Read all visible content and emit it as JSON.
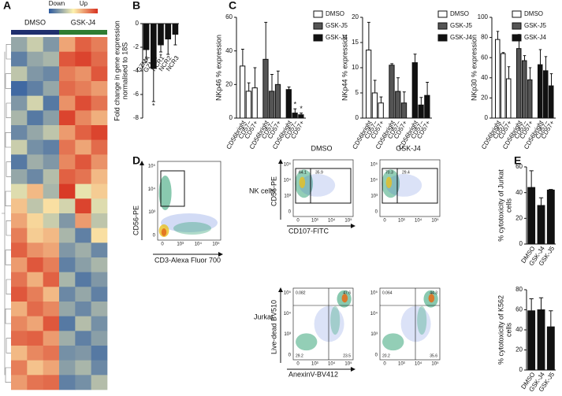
{
  "panel_labels": [
    "A",
    "B",
    "C",
    "D",
    "E"
  ],
  "chart_data": [
    {
      "type": "heatmap",
      "legend_labels": [
        "Down",
        "Up"
      ],
      "groups": [
        "DMSO",
        "GSK-J4"
      ],
      "group_colors": [
        "#1f2f6e",
        "#2e7d32"
      ],
      "zlim": [
        -2,
        2
      ],
      "values": [
        [
          -1,
          -0.5,
          -1.2,
          0.8,
          1.5,
          1.2
        ],
        [
          -1.5,
          -1,
          -0.8,
          1.6,
          1.8,
          1.4
        ],
        [
          -0.6,
          -1.2,
          -1.4,
          1.2,
          1,
          1.6
        ],
        [
          -1.8,
          -1.5,
          -1,
          1.4,
          1.2,
          0.9
        ],
        [
          -1.2,
          -0.4,
          -1.6,
          1,
          1.7,
          1.3
        ],
        [
          -0.8,
          -1.6,
          -1.1,
          1.8,
          1.1,
          0.7
        ],
        [
          -1.4,
          -1,
          -0.6,
          0.9,
          1.5,
          1.8
        ],
        [
          -0.5,
          -1.3,
          -1.5,
          1.3,
          0.8,
          1.4
        ],
        [
          -1.6,
          -0.9,
          -1.2,
          1.1,
          1.6,
          1
        ],
        [
          -1,
          -1.4,
          -0.7,
          1.5,
          1.3,
          0.6
        ],
        [
          -0.3,
          0.6,
          -0.8,
          1.9,
          -0.2,
          0.4
        ],
        [
          0.5,
          -0.6,
          0.2,
          -0.4,
          1.8,
          -0.3
        ],
        [
          0.8,
          0.3,
          -0.5,
          -1.2,
          0.9,
          -0.6
        ],
        [
          1.2,
          0.4,
          0.6,
          -0.8,
          -1.5,
          0.2
        ],
        [
          1.5,
          1,
          0.8,
          -1.2,
          -0.9,
          -1.4
        ],
        [
          0.9,
          1.6,
          1.2,
          -1.5,
          -1.1,
          -0.8
        ],
        [
          1.3,
          0.7,
          1.5,
          -0.8,
          -1.6,
          -1.2
        ],
        [
          1.6,
          1.2,
          0.6,
          -1.4,
          -1,
          -1.5
        ],
        [
          0.7,
          1.4,
          1.1,
          -1,
          -1.4,
          -0.9
        ],
        [
          1.1,
          0.8,
          1.6,
          -1.6,
          -0.7,
          -1.3
        ],
        [
          1.4,
          1.5,
          0.9,
          -0.9,
          -1.5,
          -1.1
        ],
        [
          0.6,
          1.1,
          1.3,
          -1.3,
          -1.2,
          -1.6
        ],
        [
          1.2,
          0.5,
          0.8,
          -1.1,
          -0.8,
          -1.4
        ],
        [
          0.9,
          1.3,
          1.4,
          -1.5,
          -1.3,
          -0.7
        ]
      ]
    },
    {
      "type": "bar",
      "ylabel": [
        "Fold change in gene expression",
        "normalised to 18S"
      ],
      "categories": [
        "GZMA",
        "GZMH",
        "NCR1",
        "NCR2",
        "NCR3"
      ],
      "values": [
        -2.2,
        -3.8,
        -1.8,
        -1.3,
        -0.9
      ],
      "errors": [
        0.8,
        2.8,
        0.6,
        1.3,
        0.9
      ],
      "significance": [
        "*",
        "*",
        "*",
        null,
        null
      ],
      "color": "#111111",
      "ylim": [
        -8,
        0
      ],
      "yticks": [
        0,
        -2,
        -4,
        -6,
        -8
      ]
    },
    {
      "type": "grouped_bar",
      "ylabel": [
        "NKp46 % expression"
      ],
      "categories": [
        "CD56bright",
        "CD57−",
        "CD57+"
      ],
      "series": [
        {
          "name": "DMSO",
          "color": "#ffffff",
          "values": [
            31,
            16,
            18
          ],
          "errors": [
            10,
            5,
            12
          ]
        },
        {
          "name": "GSK-J5",
          "color": "#555555",
          "values": [
            35,
            16,
            20
          ],
          "errors": [
            22,
            10,
            8
          ]
        },
        {
          "name": "GSK-J4",
          "color": "#111111",
          "values": [
            17,
            3,
            2
          ],
          "errors": [
            1.5,
            2.5,
            1
          ],
          "significance": [
            null,
            "*",
            "*"
          ]
        }
      ],
      "ylim": [
        0,
        60
      ],
      "yticks": [
        0,
        20,
        40,
        60
      ]
    },
    {
      "type": "grouped_bar",
      "ylabel": [
        "NKp44 % expression"
      ],
      "categories": [
        "CD56bright",
        "CD57−",
        "CD57+"
      ],
      "series": [
        {
          "name": "DMSO",
          "color": "#ffffff",
          "values": [
            13.5,
            5,
            3
          ],
          "errors": [
            5.5,
            2.5,
            1.2
          ]
        },
        {
          "name": "GSK-J5",
          "color": "#555555",
          "values": [
            10.5,
            5.3,
            3
          ],
          "errors": [
            0.3,
            2.7,
            2.2
          ]
        },
        {
          "name": "GSK-J4",
          "color": "#111111",
          "values": [
            11,
            2.6,
            4.5
          ],
          "errors": [
            1.7,
            1.5,
            2.6
          ]
        }
      ],
      "ylim": [
        0,
        20
      ],
      "yticks": [
        0,
        5,
        10,
        15,
        20
      ]
    },
    {
      "type": "grouped_bar",
      "ylabel": [
        "NKp30 % expression"
      ],
      "categories": [
        "CD56bright",
        "CD57−",
        "CD57+"
      ],
      "series": [
        {
          "name": "DMSO",
          "color": "#ffffff",
          "values": [
            78,
            64,
            39
          ],
          "errors": [
            8,
            1,
            12
          ]
        },
        {
          "name": "GSK-J5",
          "color": "#555555",
          "values": [
            69,
            57,
            38
          ],
          "errors": [
            14,
            5,
            12
          ]
        },
        {
          "name": "GSK-J4",
          "color": "#111111",
          "values": [
            53,
            47,
            32
          ],
          "errors": [
            15,
            14,
            12
          ]
        }
      ],
      "ylim": [
        0,
        100
      ],
      "yticks": [
        0,
        20,
        40,
        60,
        80,
        100
      ]
    },
    {
      "type": "bar",
      "ylabel": [
        "% cytotoxicity of Jurkat",
        "cells"
      ],
      "categories": [
        "DMSO",
        "GSK-J4",
        "GSK-J5"
      ],
      "values": [
        44,
        30,
        42
      ],
      "errors": [
        13,
        6,
        0.5
      ],
      "color": "#111111",
      "ylim": [
        0,
        60
      ],
      "yticks": [
        0,
        20,
        40,
        60
      ]
    },
    {
      "type": "bar",
      "ylabel": [
        "% cytotoxicity of K562",
        "cells"
      ],
      "categories": [
        "DMSO",
        "GSK-J4",
        "GSK-J5"
      ],
      "values": [
        59,
        60,
        43
      ],
      "errors": [
        12,
        12,
        16
      ],
      "color": "#111111",
      "ylim": [
        0,
        80
      ],
      "yticks": [
        0,
        20,
        40,
        60,
        80
      ]
    }
  ],
  "flow": {
    "titles": [
      "DMSO",
      "GSK-J4"
    ],
    "row_labels": [
      "NK cells",
      "Jurkat"
    ],
    "screen": {
      "ylabel": "CD56-PE",
      "xlabel": "CD3-Alexa Fluor 700",
      "yticks": [
        "10⁵",
        "10⁴",
        "10³",
        "0"
      ],
      "xticks": [
        "0",
        "10³",
        "10⁴",
        "10⁵"
      ]
    },
    "nk": {
      "ylabel": "CD56-PE",
      "xlabel": "CD107-FITC",
      "yticks": [
        "10⁵",
        "10⁴",
        "10³",
        "0"
      ],
      "xticks": [
        "0",
        "10³",
        "10⁴",
        "10⁵"
      ],
      "gates": [
        [
          64.1,
          35.9
        ],
        [
          70.3,
          29.4
        ]
      ]
    },
    "jurkat": {
      "ylabel": "Live-dead BV510",
      "xlabel": "AnexinV-BV412",
      "yticks": [
        "10⁵",
        "10⁴",
        "10³",
        "0"
      ],
      "xticks": [
        "0",
        "10³",
        "10⁴",
        "10⁵"
      ],
      "quadrants": [
        [
          0.082,
          47.6,
          29.2,
          23.5
        ],
        [
          0.064,
          44.3,
          20.2,
          35.6
        ]
      ]
    }
  }
}
